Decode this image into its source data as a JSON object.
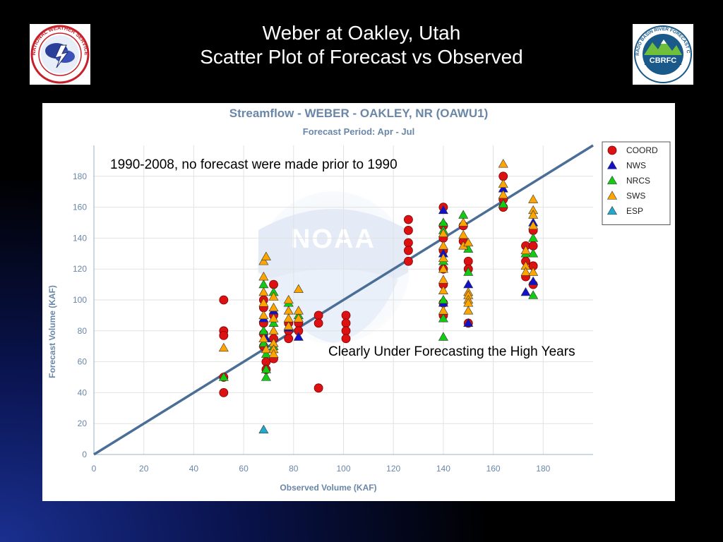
{
  "slide": {
    "title_line1": "Weber at Oakley, Utah",
    "title_line2": "Scatter Plot of Forecast vs Observed"
  },
  "logos": {
    "nws": {
      "text": "NATIONAL WEATHER SERVICE"
    },
    "cbrfc": {
      "text": "CBRFC",
      "ring_text": "COLORADO BASIN RIVER FORECAST CENTER"
    }
  },
  "annotations": {
    "note1": "1990-2008, no forecast were made prior to 1990",
    "note2": "Clearly Under Forecasting the High Years"
  },
  "chart_data": {
    "type": "scatter",
    "title": "Streamflow - WEBER - OAKLEY, NR (OAWU1)",
    "subtitle": "Forecast Period: Apr - Jul",
    "xlabel": "Observed Volume (KAF)",
    "ylabel": "Forecast Volume (KAF)",
    "xlim": [
      0,
      200
    ],
    "ylim": [
      0,
      200
    ],
    "xticks": [
      0,
      20,
      40,
      60,
      80,
      100,
      120,
      140,
      160,
      180
    ],
    "yticks": [
      0,
      20,
      40,
      60,
      80,
      100,
      120,
      140,
      160,
      180
    ],
    "grid": true,
    "legend_position": "top-right",
    "reference_line": {
      "from": [
        0,
        0
      ],
      "to": [
        200,
        200
      ],
      "color": "#4a6e96"
    },
    "series": [
      {
        "name": "COORD",
        "marker": "circle",
        "color": "#dd1111",
        "points": [
          [
            52,
            100
          ],
          [
            52,
            80
          ],
          [
            52,
            77
          ],
          [
            52,
            50
          ],
          [
            52,
            40
          ],
          [
            68,
            100
          ],
          [
            68,
            95
          ],
          [
            68,
            85
          ],
          [
            68,
            78
          ],
          [
            68,
            70
          ],
          [
            69,
            60
          ],
          [
            69,
            55
          ],
          [
            72,
            110
          ],
          [
            72,
            90
          ],
          [
            72,
            75
          ],
          [
            72,
            62
          ],
          [
            78,
            85
          ],
          [
            78,
            80
          ],
          [
            78,
            75
          ],
          [
            82,
            85
          ],
          [
            82,
            80
          ],
          [
            90,
            90
          ],
          [
            90,
            85
          ],
          [
            90,
            43
          ],
          [
            101,
            90
          ],
          [
            101,
            85
          ],
          [
            101,
            80
          ],
          [
            101,
            75
          ],
          [
            126,
            152
          ],
          [
            126,
            145
          ],
          [
            126,
            137
          ],
          [
            126,
            132
          ],
          [
            126,
            125
          ],
          [
            140,
            160
          ],
          [
            140,
            148
          ],
          [
            140,
            140
          ],
          [
            140,
            132
          ],
          [
            140,
            120
          ],
          [
            140,
            110
          ],
          [
            140,
            98
          ],
          [
            140,
            90
          ],
          [
            148,
            148
          ],
          [
            148,
            138
          ],
          [
            150,
            125
          ],
          [
            150,
            120
          ],
          [
            150,
            85
          ],
          [
            164,
            180
          ],
          [
            164,
            165
          ],
          [
            164,
            160
          ],
          [
            173,
            135
          ],
          [
            173,
            125
          ],
          [
            173,
            115
          ],
          [
            176,
            145
          ],
          [
            176,
            135
          ],
          [
            176,
            122
          ],
          [
            176,
            110
          ]
        ]
      },
      {
        "name": "NWS",
        "marker": "triangle",
        "color": "#1111cc",
        "points": [
          [
            68,
            88
          ],
          [
            69,
            75
          ],
          [
            72,
            93
          ],
          [
            78,
            82
          ],
          [
            82,
            76
          ],
          [
            140,
            158
          ],
          [
            140,
            130
          ],
          [
            140,
            98
          ],
          [
            150,
            110
          ],
          [
            150,
            85
          ],
          [
            164,
            172
          ],
          [
            173,
            105
          ],
          [
            176,
            150
          ],
          [
            176,
            112
          ]
        ]
      },
      {
        "name": "NRCS",
        "marker": "triangle",
        "color": "#11cc11",
        "points": [
          [
            52,
            50
          ],
          [
            68,
            110
          ],
          [
            68,
            80
          ],
          [
            68,
            72
          ],
          [
            69,
            65
          ],
          [
            69,
            55
          ],
          [
            69,
            50
          ],
          [
            72,
            105
          ],
          [
            72,
            85
          ],
          [
            72,
            70
          ],
          [
            78,
            98
          ],
          [
            82,
            90
          ],
          [
            140,
            150
          ],
          [
            140,
            145
          ],
          [
            140,
            125
          ],
          [
            140,
            100
          ],
          [
            140,
            88
          ],
          [
            140,
            76
          ],
          [
            148,
            155
          ],
          [
            150,
            133
          ],
          [
            150,
            118
          ],
          [
            164,
            162
          ],
          [
            173,
            130
          ],
          [
            176,
            140
          ],
          [
            176,
            130
          ],
          [
            176,
            103
          ]
        ]
      },
      {
        "name": "SWS",
        "marker": "triangle",
        "color": "#ffa500",
        "points": [
          [
            52,
            69
          ],
          [
            68,
            125
          ],
          [
            68,
            115
          ],
          [
            68,
            105
          ],
          [
            68,
            98
          ],
          [
            68,
            90
          ],
          [
            68,
            75
          ],
          [
            69,
            128
          ],
          [
            69,
            68
          ],
          [
            72,
            102
          ],
          [
            72,
            95
          ],
          [
            72,
            88
          ],
          [
            72,
            80
          ],
          [
            72,
            72
          ],
          [
            72,
            68
          ],
          [
            72,
            65
          ],
          [
            78,
            100
          ],
          [
            78,
            93
          ],
          [
            78,
            88
          ],
          [
            78,
            83
          ],
          [
            82,
            107
          ],
          [
            82,
            93
          ],
          [
            82,
            88
          ],
          [
            140,
            143
          ],
          [
            140,
            135
          ],
          [
            140,
            127
          ],
          [
            140,
            120
          ],
          [
            140,
            113
          ],
          [
            140,
            106
          ],
          [
            140,
            93
          ],
          [
            148,
            150
          ],
          [
            148,
            142
          ],
          [
            148,
            135
          ],
          [
            150,
            137
          ],
          [
            150,
            105
          ],
          [
            150,
            103
          ],
          [
            150,
            100
          ],
          [
            150,
            98
          ],
          [
            150,
            93
          ],
          [
            164,
            188
          ],
          [
            164,
            175
          ],
          [
            164,
            168
          ],
          [
            173,
            132
          ],
          [
            173,
            122
          ],
          [
            173,
            118
          ],
          [
            176,
            165
          ],
          [
            176,
            158
          ],
          [
            176,
            155
          ],
          [
            176,
            148
          ],
          [
            176,
            118
          ]
        ]
      },
      {
        "name": "ESP",
        "marker": "triangle",
        "color": "#22aacc",
        "points": [
          [
            68,
            16
          ]
        ]
      }
    ]
  }
}
